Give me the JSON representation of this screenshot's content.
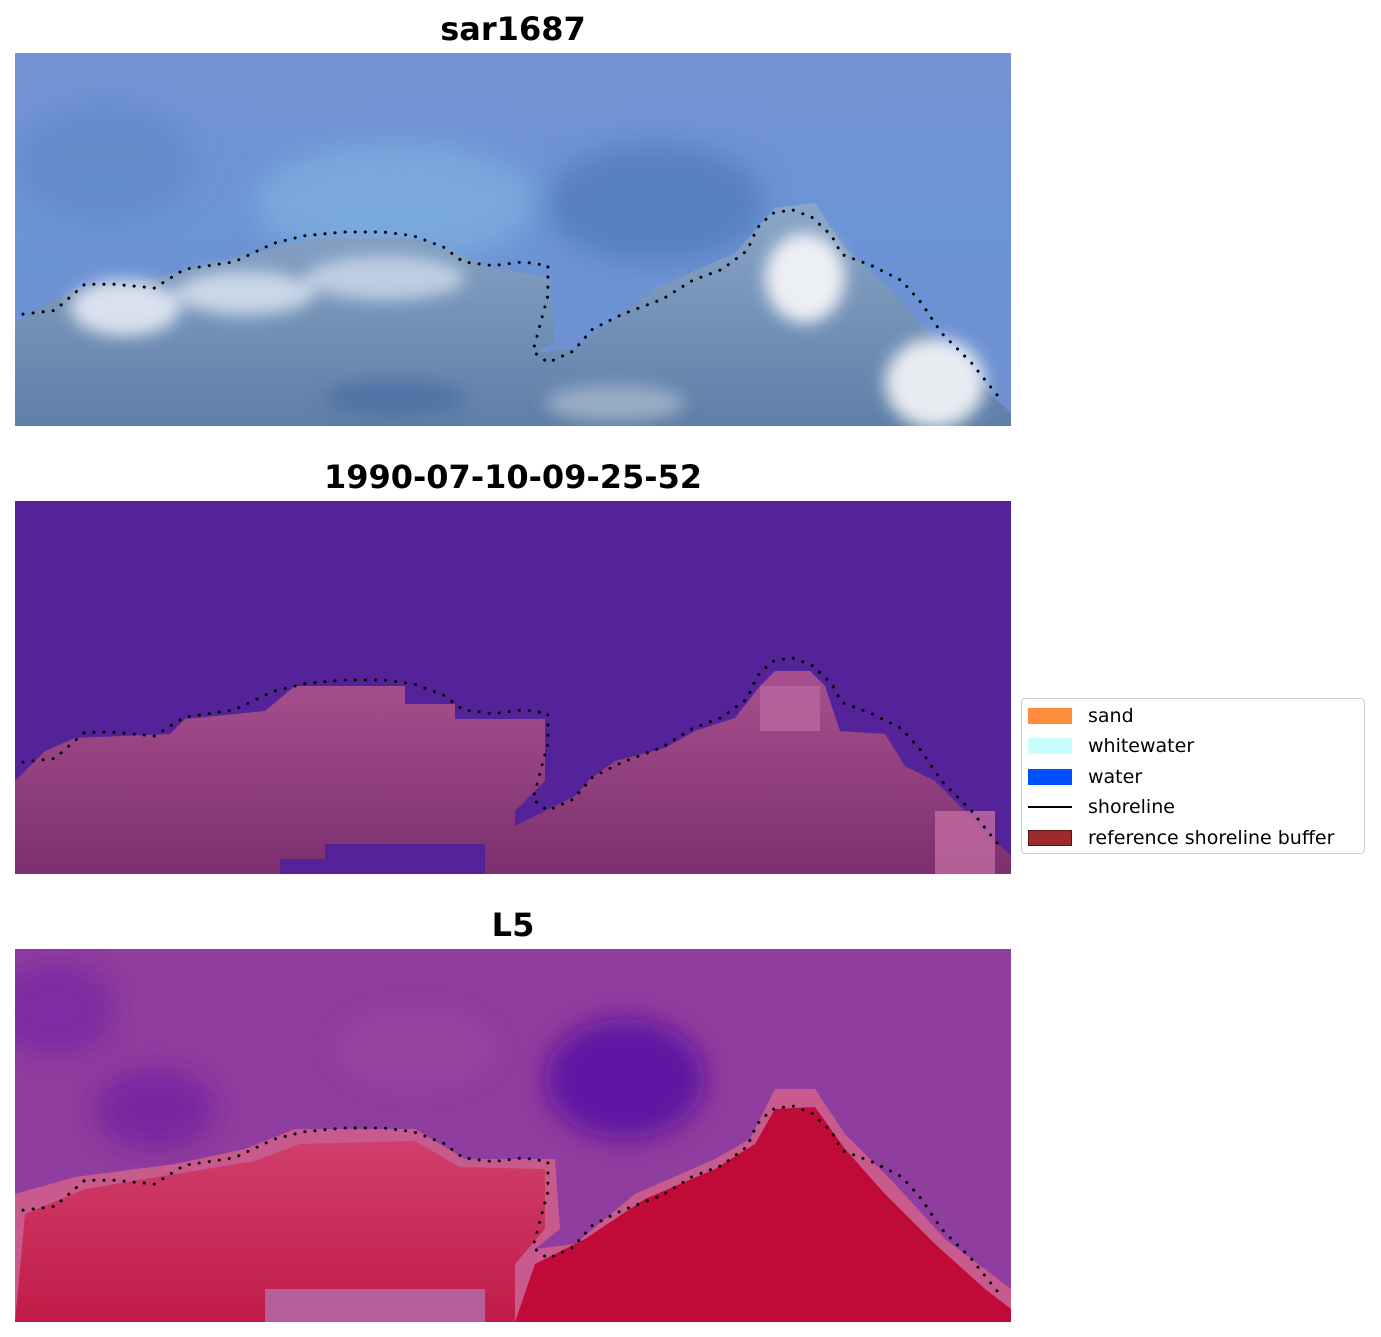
{
  "panels": [
    {
      "title": "sar1687",
      "kind": "rgb"
    },
    {
      "title": "1990-07-10-09-25-52",
      "kind": "classified"
    },
    {
      "title": "L5",
      "kind": "index"
    }
  ],
  "legend": {
    "placement": "center-right",
    "items": [
      {
        "label": "sand",
        "type": "patch",
        "color": "#ff8c3f"
      },
      {
        "label": "whitewater",
        "type": "patch",
        "color": "#c8fdfb"
      },
      {
        "label": "water",
        "type": "patch",
        "color": "#0050ff"
      },
      {
        "label": "shoreline",
        "type": "line",
        "color": "#000000"
      },
      {
        "label": "reference shoreline buffer",
        "type": "patch",
        "color": "#9c2b2b"
      }
    ]
  },
  "colors": {
    "water_class": "#54239a",
    "land_class": "#8c3d78",
    "rgb_sky": "#6f8fd6",
    "rgb_surf": "#d9e4ef",
    "index_water": "#8f3d9e",
    "index_land": "#c2103f",
    "shoreline": "#000000"
  },
  "shoreline": {
    "style": "dotted",
    "points": [
      [
        0.008,
        0.7
      ],
      [
        0.04,
        0.69
      ],
      [
        0.07,
        0.62
      ],
      [
        0.1,
        0.62
      ],
      [
        0.14,
        0.63
      ],
      [
        0.17,
        0.58
      ],
      [
        0.22,
        0.56
      ],
      [
        0.26,
        0.51
      ],
      [
        0.29,
        0.49
      ],
      [
        0.33,
        0.48
      ],
      [
        0.37,
        0.48
      ],
      [
        0.4,
        0.49
      ],
      [
        0.43,
        0.52
      ],
      [
        0.45,
        0.56
      ],
      [
        0.48,
        0.57
      ],
      [
        0.51,
        0.56
      ],
      [
        0.535,
        0.57
      ],
      [
        0.535,
        0.65
      ],
      [
        0.525,
        0.75
      ],
      [
        0.52,
        0.8
      ],
      [
        0.535,
        0.83
      ],
      [
        0.56,
        0.8
      ],
      [
        0.58,
        0.74
      ],
      [
        0.61,
        0.7
      ],
      [
        0.65,
        0.66
      ],
      [
        0.68,
        0.61
      ],
      [
        0.71,
        0.58
      ],
      [
        0.735,
        0.53
      ],
      [
        0.745,
        0.47
      ],
      [
        0.76,
        0.43
      ],
      [
        0.78,
        0.42
      ],
      [
        0.8,
        0.44
      ],
      [
        0.82,
        0.49
      ],
      [
        0.83,
        0.54
      ],
      [
        0.86,
        0.57
      ],
      [
        0.89,
        0.61
      ],
      [
        0.91,
        0.67
      ],
      [
        0.93,
        0.75
      ],
      [
        0.96,
        0.83
      ],
      [
        0.99,
        0.93
      ]
    ]
  }
}
